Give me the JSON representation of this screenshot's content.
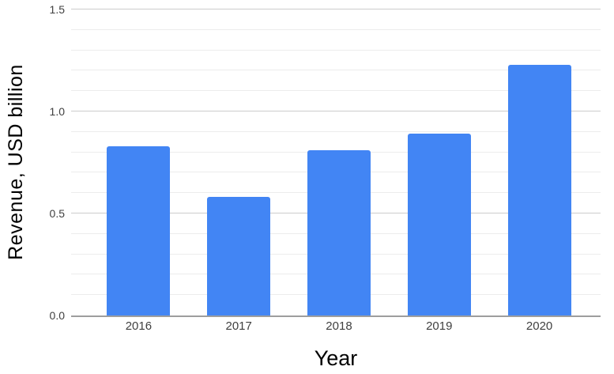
{
  "chart_data": {
    "type": "bar",
    "title": "",
    "categories": [
      "2016",
      "2017",
      "2018",
      "2019",
      "2020"
    ],
    "values": [
      0.83,
      0.58,
      0.81,
      0.89,
      1.23
    ],
    "xlabel": "Year",
    "ylabel": "Revenue, USD billion",
    "ylim": [
      0,
      1.5
    ],
    "ytick_labels": [
      "0.0",
      "0.5",
      "1.0",
      "1.5"
    ],
    "ytick_values": [
      0,
      0.5,
      1.0,
      1.5
    ],
    "minor_grid_step": 0.1,
    "grid": "on",
    "legend_position": "none",
    "bar_color": "#4285f4",
    "major_grid_color": "#cccccc",
    "minor_grid_color": "#ececec",
    "baseline_color": "#9e9e9e",
    "tick_label_color": "#404040",
    "axis_title_color": "#000000",
    "background_color": "#ffffff"
  }
}
